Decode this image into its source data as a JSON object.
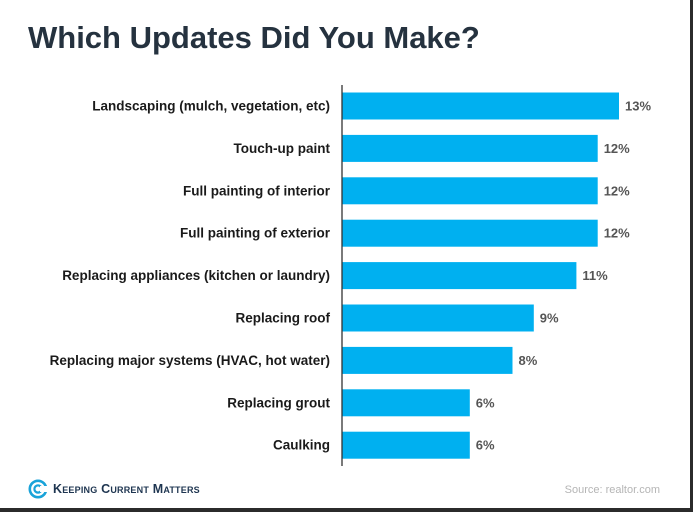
{
  "title": "Which Updates Did You Make?",
  "brand": {
    "name": "Keeping Current Matters",
    "icon": "kcm-logo-icon",
    "color": "#1e3550",
    "ring_color": "#1aa3d9"
  },
  "source": "Source: realtor.com",
  "colors": {
    "bar": "#00b0f0",
    "axis": "#333333",
    "label": "#1a1a1a",
    "value_label": "#555555"
  },
  "chart_data": {
    "type": "bar",
    "orientation": "horizontal",
    "title": "Which Updates Did You Make?",
    "categories": [
      "Landscaping (mulch, vegetation, etc)",
      "Touch-up paint",
      "Full painting of interior",
      "Full painting of exterior",
      "Replacing appliances (kitchen or laundry)",
      "Replacing roof",
      "Replacing major systems (HVAC, hot water)",
      "Replacing grout",
      "Caulking"
    ],
    "values": [
      13,
      12,
      12,
      12,
      11,
      9,
      8,
      6,
      6
    ],
    "value_labels": [
      "13%",
      "12%",
      "12%",
      "12%",
      "11%",
      "9%",
      "8%",
      "6%",
      "6%"
    ],
    "unit": "%",
    "xlim": [
      0,
      13
    ],
    "grid": false,
    "legend": "none"
  }
}
